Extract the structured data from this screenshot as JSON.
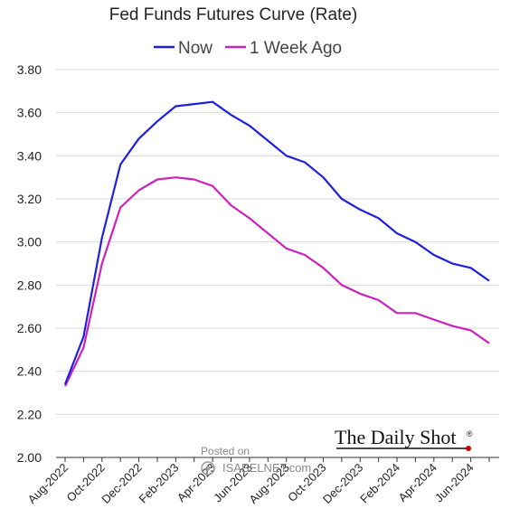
{
  "chart_data": {
    "type": "line",
    "title": "Fed Funds Futures Curve (Rate)",
    "xlabel": "",
    "ylabel": "",
    "ylim": [
      2.0,
      3.8
    ],
    "yticks": [
      "2.00",
      "2.20",
      "2.40",
      "2.60",
      "2.80",
      "3.00",
      "3.20",
      "3.40",
      "3.60",
      "3.80"
    ],
    "grid": true,
    "legend": "top-center",
    "x": [
      "Aug-2022",
      "Sep-2022",
      "Oct-2022",
      "Nov-2022",
      "Dec-2022",
      "Jan-2023",
      "Feb-2023",
      "Mar-2023",
      "Apr-2023",
      "May-2023",
      "Jun-2023",
      "Jul-2023",
      "Aug-2023",
      "Sep-2023",
      "Oct-2023",
      "Nov-2023",
      "Dec-2023",
      "Jan-2024",
      "Feb-2024",
      "Mar-2024",
      "Apr-2024",
      "May-2024",
      "Jun-2024",
      "Jul-2024"
    ],
    "xtick_labels": [
      "Aug-2022",
      "Oct-2022",
      "Dec-2022",
      "Feb-2023",
      "Apr-2023",
      "Jun-2023",
      "Aug-2023",
      "Oct-2023",
      "Dec-2023",
      "Feb-2024",
      "Apr-2024",
      "Jun-2024"
    ],
    "series": [
      {
        "name": "Now",
        "color": "#1f1fe0",
        "values": [
          2.34,
          2.56,
          3.02,
          3.36,
          3.48,
          3.56,
          3.63,
          3.64,
          3.65,
          3.59,
          3.54,
          3.47,
          3.4,
          3.37,
          3.3,
          3.2,
          3.15,
          3.11,
          3.04,
          3.0,
          2.94,
          2.9,
          2.88,
          2.82
        ]
      },
      {
        "name": "1 Week Ago",
        "color": "#cc22bb",
        "values": [
          2.33,
          2.51,
          2.9,
          3.16,
          3.24,
          3.29,
          3.3,
          3.29,
          3.26,
          3.17,
          3.11,
          3.04,
          2.97,
          2.94,
          2.88,
          2.8,
          2.76,
          2.73,
          2.67,
          2.67,
          2.64,
          2.61,
          2.59,
          2.53
        ]
      }
    ]
  },
  "branding": {
    "publisher": "The Daily Shot",
    "registered_mark": "®",
    "watermark_line1": "Posted on",
    "watermark_line2": "ISABELNET.com"
  }
}
